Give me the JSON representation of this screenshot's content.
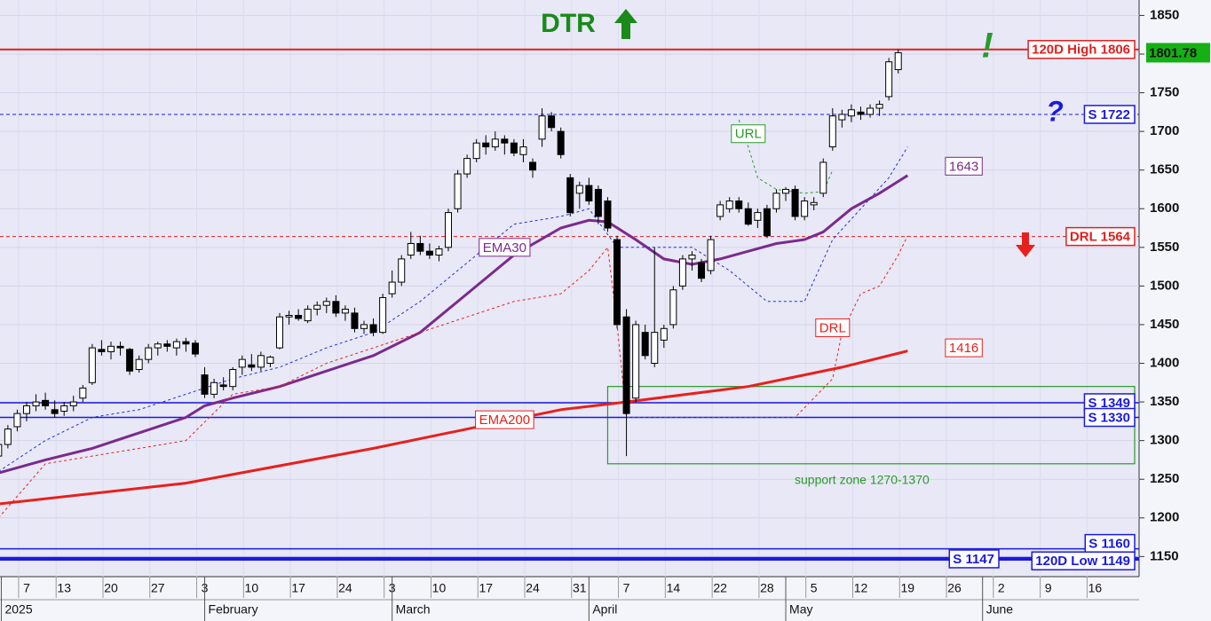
{
  "chart_data": {
    "type": "candlestick",
    "title": "DTR",
    "title_color": "#1a8a1a",
    "background": "#e8e8f6",
    "axis_background": "#f4f4fb",
    "grid": true,
    "ylim": [
      1124,
      1870
    ],
    "yticks": [
      1150,
      1200,
      1250,
      1300,
      1350,
      1400,
      1450,
      1500,
      1550,
      1600,
      1650,
      1700,
      1750,
      1800,
      1850
    ],
    "xlim": [
      0.16,
      121.7
    ],
    "xticks": [
      {
        "value": 3,
        "label": "7"
      },
      {
        "value": 7,
        "label": "13"
      },
      {
        "value": 12,
        "label": "20"
      },
      {
        "value": 17,
        "label": "27"
      },
      {
        "value": 22,
        "label": "3"
      },
      {
        "value": 27,
        "label": "10"
      },
      {
        "value": 32,
        "label": "17"
      },
      {
        "value": 37,
        "label": "24"
      },
      {
        "value": 42,
        "label": "3"
      },
      {
        "value": 47,
        "label": "10"
      },
      {
        "value": 52,
        "label": "17"
      },
      {
        "value": 57,
        "label": "24"
      },
      {
        "value": 62,
        "label": "31"
      },
      {
        "value": 67,
        "label": "7"
      },
      {
        "value": 72,
        "label": "14"
      },
      {
        "value": 77,
        "label": "22"
      },
      {
        "value": 82,
        "label": "28"
      },
      {
        "value": 87,
        "label": "5"
      },
      {
        "value": 92,
        "label": "12"
      },
      {
        "value": 97,
        "label": "19"
      },
      {
        "value": 102,
        "label": "26"
      },
      {
        "value": 107,
        "label": "2"
      },
      {
        "value": 112,
        "label": "9"
      },
      {
        "value": 117,
        "label": "16"
      }
    ],
    "month_ticks": [
      {
        "value": 0.3,
        "label": "2025"
      },
      {
        "value": 22,
        "label": "February"
      },
      {
        "value": 42,
        "label": "March"
      },
      {
        "value": 63,
        "label": "April"
      },
      {
        "value": 84,
        "label": "May"
      },
      {
        "value": 105,
        "label": "June"
      }
    ],
    "candles": {
      "up_color": "#ffffff",
      "down_color": "#000000",
      "ohlc": [
        [
          1280,
          1300,
          1270,
          1295
        ],
        [
          1295,
          1320,
          1290,
          1315
        ],
        [
          1318,
          1340,
          1312,
          1335
        ],
        [
          1335,
          1350,
          1325,
          1345
        ],
        [
          1345,
          1360,
          1338,
          1350
        ],
        [
          1352,
          1362,
          1340,
          1345
        ],
        [
          1340,
          1352,
          1330,
          1335
        ],
        [
          1338,
          1350,
          1332,
          1345
        ],
        [
          1345,
          1358,
          1338,
          1350
        ],
        [
          1355,
          1372,
          1350,
          1368
        ],
        [
          1375,
          1425,
          1372,
          1420
        ],
        [
          1418,
          1430,
          1410,
          1415
        ],
        [
          1415,
          1428,
          1405,
          1422
        ],
        [
          1422,
          1428,
          1410,
          1420
        ],
        [
          1418,
          1420,
          1385,
          1390
        ],
        [
          1392,
          1410,
          1388,
          1405
        ],
        [
          1405,
          1425,
          1400,
          1420
        ],
        [
          1420,
          1428,
          1410,
          1425
        ],
        [
          1425,
          1430,
          1415,
          1422
        ],
        [
          1420,
          1432,
          1410,
          1428
        ],
        [
          1428,
          1433,
          1415,
          1425
        ],
        [
          1426,
          1430,
          1408,
          1412
        ],
        [
          1385,
          1395,
          1355,
          1360
        ],
        [
          1360,
          1380,
          1355,
          1375
        ],
        [
          1372,
          1382,
          1365,
          1370
        ],
        [
          1370,
          1395,
          1365,
          1392
        ],
        [
          1395,
          1410,
          1385,
          1405
        ],
        [
          1398,
          1412,
          1390,
          1395
        ],
        [
          1395,
          1415,
          1390,
          1410
        ],
        [
          1400,
          1410,
          1395,
          1408
        ],
        [
          1420,
          1465,
          1418,
          1460
        ],
        [
          1460,
          1468,
          1450,
          1462
        ],
        [
          1462,
          1470,
          1455,
          1458
        ],
        [
          1455,
          1475,
          1452,
          1470
        ],
        [
          1470,
          1480,
          1462,
          1475
        ],
        [
          1475,
          1485,
          1465,
          1480
        ],
        [
          1480,
          1488,
          1460,
          1465
        ],
        [
          1465,
          1475,
          1455,
          1470
        ],
        [
          1465,
          1472,
          1440,
          1445
        ],
        [
          1445,
          1455,
          1438,
          1450
        ],
        [
          1450,
          1458,
          1435,
          1440
        ],
        [
          1440,
          1490,
          1438,
          1485
        ],
        [
          1490,
          1520,
          1485,
          1505
        ],
        [
          1505,
          1540,
          1500,
          1535
        ],
        [
          1540,
          1570,
          1535,
          1555
        ],
        [
          1555,
          1565,
          1540,
          1545
        ],
        [
          1545,
          1555,
          1535,
          1540
        ],
        [
          1540,
          1552,
          1532,
          1548
        ],
        [
          1550,
          1600,
          1545,
          1595
        ],
        [
          1600,
          1650,
          1595,
          1645
        ],
        [
          1645,
          1670,
          1640,
          1665
        ],
        [
          1665,
          1690,
          1660,
          1685
        ],
        [
          1685,
          1695,
          1670,
          1680
        ],
        [
          1680,
          1700,
          1675,
          1690
        ],
        [
          1690,
          1695,
          1670,
          1685
        ],
        [
          1685,
          1690,
          1668,
          1672
        ],
        [
          1670,
          1690,
          1660,
          1680
        ],
        [
          1660,
          1665,
          1640,
          1650
        ],
        [
          1690,
          1730,
          1680,
          1720
        ],
        [
          1720,
          1725,
          1700,
          1705
        ],
        [
          1700,
          1705,
          1665,
          1670
        ],
        [
          1640,
          1645,
          1590,
          1595
        ],
        [
          1620,
          1635,
          1600,
          1630
        ],
        [
          1630,
          1640,
          1605,
          1610
        ],
        [
          1625,
          1630,
          1580,
          1590
        ],
        [
          1610,
          1615,
          1570,
          1575
        ],
        [
          1560,
          1565,
          1445,
          1450
        ],
        [
          1460,
          1470,
          1280,
          1335
        ],
        [
          1355,
          1455,
          1350,
          1450
        ],
        [
          1440,
          1450,
          1405,
          1410
        ],
        [
          1400,
          1550,
          1395,
          1440
        ],
        [
          1430,
          1450,
          1420,
          1445
        ],
        [
          1450,
          1500,
          1445,
          1495
        ],
        [
          1500,
          1540,
          1495,
          1535
        ],
        [
          1535,
          1545,
          1520,
          1540
        ],
        [
          1530,
          1535,
          1505,
          1510
        ],
        [
          1520,
          1565,
          1515,
          1560
        ],
        [
          1590,
          1610,
          1585,
          1605
        ],
        [
          1600,
          1615,
          1595,
          1610
        ],
        [
          1610,
          1615,
          1595,
          1600
        ],
        [
          1600,
          1608,
          1578,
          1580
        ],
        [
          1585,
          1600,
          1575,
          1595
        ],
        [
          1600,
          1605,
          1562,
          1565
        ],
        [
          1600,
          1625,
          1595,
          1620
        ],
        [
          1620,
          1628,
          1610,
          1625
        ],
        [
          1625,
          1630,
          1585,
          1590
        ],
        [
          1590,
          1615,
          1585,
          1610
        ],
        [
          1605,
          1615,
          1598,
          1608
        ],
        [
          1620,
          1665,
          1615,
          1660
        ],
        [
          1680,
          1730,
          1675,
          1720
        ],
        [
          1715,
          1728,
          1705,
          1722
        ],
        [
          1720,
          1735,
          1712,
          1728
        ],
        [
          1725,
          1732,
          1715,
          1722
        ],
        [
          1722,
          1735,
          1718,
          1730
        ],
        [
          1730,
          1740,
          1720,
          1735
        ],
        [
          1745,
          1795,
          1740,
          1790
        ],
        [
          1780,
          1806,
          1775,
          1801.78
        ]
      ]
    },
    "lines": [
      {
        "label": "EMA30",
        "end_value": 1643,
        "color": "#7b2a8c",
        "width": 3,
        "dash": false,
        "x": [
          0,
          5,
          10,
          15,
          20,
          22,
          25,
          30,
          35,
          40,
          45,
          50,
          55,
          60,
          63,
          65,
          68,
          71,
          74,
          77,
          80,
          83,
          86,
          88,
          91,
          94,
          97
        ],
        "values": [
          1258,
          1275,
          1290,
          1310,
          1330,
          1345,
          1355,
          1370,
          1390,
          1410,
          1440,
          1490,
          1540,
          1575,
          1585,
          1583,
          1560,
          1535,
          1528,
          1535,
          1545,
          1555,
          1560,
          1570,
          1600,
          1620,
          1643
        ]
      },
      {
        "label": "EMA200",
        "end_value": 1416,
        "color": "#e8201c",
        "width": 3,
        "dash": false,
        "x": [
          0,
          20,
          40,
          60,
          67,
          80,
          90,
          97
        ],
        "values": [
          1218,
          1245,
          1290,
          1340,
          1350,
          1370,
          1395,
          1416
        ]
      },
      {
        "label": "URL",
        "color": "#2a9a2a",
        "width": 1,
        "dash": true,
        "x": [
          79,
          80,
          81,
          83,
          86,
          88,
          89
        ],
        "values": [
          1715,
          1680,
          1640,
          1625,
          1620,
          1622,
          1650
        ]
      },
      {
        "label": "DRL",
        "color": "#e8201c",
        "width": 1,
        "dash": true,
        "x": [
          0,
          5,
          10,
          15,
          20,
          25,
          30,
          35,
          40,
          45,
          50,
          55,
          60,
          63,
          65,
          66,
          67,
          75,
          80,
          85,
          89,
          90,
          92,
          94,
          96,
          97
        ],
        "values": [
          1200,
          1270,
          1280,
          1290,
          1300,
          1360,
          1370,
          1400,
          1420,
          1440,
          1460,
          1480,
          1490,
          1520,
          1550,
          1450,
          1330,
          1330,
          1330,
          1330,
          1380,
          1440,
          1490,
          1500,
          1540,
          1565
        ]
      },
      {
        "color": "#2030d0",
        "width": 1,
        "dash": true,
        "x": [
          0,
          5,
          10,
          15,
          20,
          25,
          30,
          35,
          40,
          45,
          50,
          55,
          60,
          63,
          66,
          70,
          74,
          78,
          82,
          86,
          89,
          92,
          95,
          97
        ],
        "values": [
          1260,
          1300,
          1330,
          1340,
          1360,
          1380,
          1395,
          1420,
          1440,
          1480,
          1530,
          1580,
          1590,
          1600,
          1550,
          1550,
          1550,
          1520,
          1480,
          1480,
          1560,
          1600,
          1640,
          1680
        ]
      }
    ],
    "levels": [
      {
        "value": 1806,
        "label": "120D High 1806",
        "color": "#e02020",
        "width": 2,
        "dash": false
      },
      {
        "value": 1722,
        "label": "S 1722",
        "color": "#1a1ae0",
        "width": 1,
        "dash": true
      },
      {
        "value": 1564,
        "label": "DRL 1564",
        "color": "#e02020",
        "width": 1,
        "dash": true
      },
      {
        "value": 1349,
        "label": "S 1349",
        "color": "#1a1ae0",
        "width": 1.5,
        "dash": false
      },
      {
        "value": 1330,
        "label": "S 1330",
        "color": "#1a1ae0",
        "width": 1.5,
        "dash": false
      },
      {
        "value": 1160,
        "label": "S 1160",
        "color": "#1a1ae0",
        "width": 1.5,
        "dash": false
      },
      {
        "value": 1147,
        "label": "S 1147",
        "color": "#1a1ae0",
        "width": 4,
        "dash": false
      },
      {
        "value": 1149,
        "label": "120D Low 1149",
        "color": "#1a1ae0",
        "width": 1,
        "dash": false
      }
    ],
    "support_zone": {
      "low": 1270,
      "high": 1370,
      "label": "support zone 1270-1370",
      "color": "#2a9a2a"
    },
    "last_price": {
      "value": 1801.78,
      "color": "#14b014"
    },
    "signals": {
      "breakout": "!",
      "breakout_color": "#2a9a2a",
      "question": "?",
      "question_color": "#1a1ae0",
      "down_arrow_color": "#e8201c"
    }
  }
}
